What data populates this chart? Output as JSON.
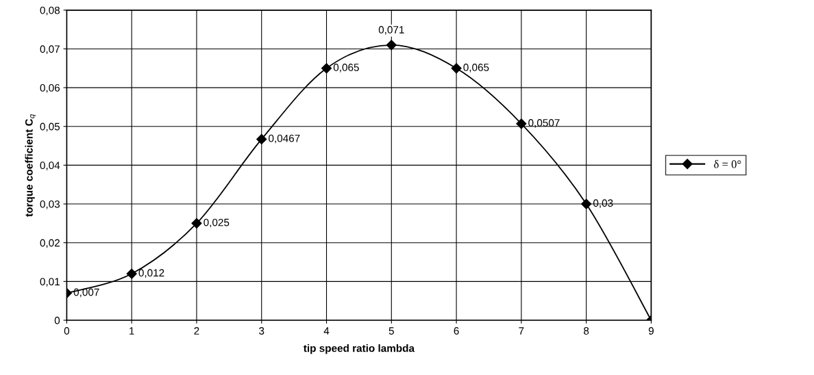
{
  "chart_data": {
    "type": "line",
    "xlabel": "tip speed ratio lambda",
    "ylabel": "torque coefficient C$_{q}$",
    "x": [
      0,
      1,
      2,
      3,
      4,
      5,
      6,
      7,
      8,
      9
    ],
    "series": [
      {
        "name": "δ = 0°",
        "color": "#000000",
        "values": [
          0.007,
          0.012,
          0.025,
          0.0467,
          0.065,
          0.071,
          0.065,
          0.0507,
          0.03,
          0
        ],
        "value_labels": [
          "0,007",
          "0,012",
          "0,025",
          "0,0467",
          "0,065",
          "0,071",
          "0,065",
          "0,0507",
          "0,03",
          null
        ]
      }
    ],
    "xlim": [
      0,
      9
    ],
    "xticks": [
      0,
      1,
      2,
      3,
      4,
      5,
      6,
      7,
      8,
      9
    ],
    "ylim": [
      0,
      0.08
    ],
    "yticks": [
      0,
      {
        "value": 0.01,
        "label": "0,01"
      },
      {
        "value": 0.02,
        "label": "0,02"
      },
      {
        "value": 0.03,
        "label": "0,03"
      },
      {
        "value": 0.04,
        "label": "0,04"
      },
      {
        "value": 0.05,
        "label": "0,05"
      },
      {
        "value": 0.06,
        "label": "0,06"
      },
      {
        "value": 0.07,
        "label": "0,07"
      },
      {
        "value": 0.08,
        "label": "0,08"
      }
    ],
    "grid": true,
    "legend": "right",
    "marker": "diamond",
    "line_style": "solid"
  }
}
